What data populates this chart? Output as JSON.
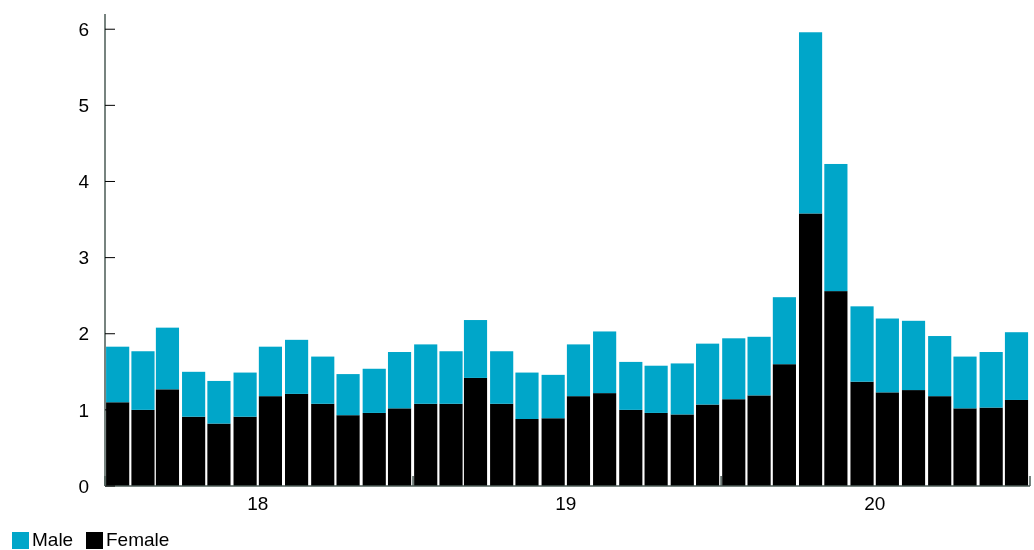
{
  "chart_data": {
    "type": "bar",
    "stacked": true,
    "x": [
      "2018-01-16",
      "2018-02-15",
      "2018-03-16",
      "2018-04-16",
      "2018-05-16",
      "2018-06-16",
      "2018-07-16",
      "2018-08-16",
      "2018-09-16",
      "2018-10-16",
      "2018-11-16",
      "2018-12-16",
      "2019-01-16",
      "2019-02-15",
      "2019-03-16",
      "2019-04-16",
      "2019-05-16",
      "2019-06-16",
      "2019-07-16",
      "2019-08-16",
      "2019-09-16",
      "2019-10-16",
      "2019-11-16",
      "2019-12-16",
      "2020-01-16",
      "2020-02-15",
      "2020-03-16",
      "2020-04-16",
      "2020-05-16",
      "2020-06-16",
      "2020-07-16",
      "2020-08-16",
      "2020-09-16",
      "2020-10-16",
      "2020-11-16",
      "2020-12-16"
    ],
    "series": [
      {
        "name": "Female",
        "color": "#000000",
        "values": [
          1.1,
          1.0,
          1.27,
          0.91,
          0.82,
          0.91,
          1.18,
          1.21,
          1.08,
          0.93,
          0.96,
          1.02,
          1.08,
          1.08,
          1.42,
          1.08,
          0.88,
          0.89,
          1.18,
          1.22,
          1.0,
          0.96,
          0.94,
          1.07,
          1.14,
          1.19,
          1.6,
          3.58,
          2.56,
          1.37,
          1.23,
          1.26,
          1.18,
          1.02,
          1.03,
          1.13
        ]
      },
      {
        "name": "Male",
        "color": "#00a6c9",
        "values": [
          0.73,
          0.77,
          0.81,
          0.59,
          0.56,
          0.58,
          0.65,
          0.71,
          0.62,
          0.54,
          0.58,
          0.74,
          0.78,
          0.69,
          0.76,
          0.69,
          0.61,
          0.57,
          0.68,
          0.81,
          0.63,
          0.62,
          0.67,
          0.8,
          0.8,
          0.77,
          0.88,
          2.38,
          1.67,
          0.99,
          0.97,
          0.91,
          0.79,
          0.68,
          0.73,
          0.89
        ]
      }
    ],
    "xlim": [
      "2018-01",
      "2021-01"
    ],
    "xticks": [
      {
        "value": "2018-01",
        "label": null
      },
      {
        "value": "2018-07",
        "label": "18"
      },
      {
        "value": "2019-01",
        "label": null
      },
      {
        "value": "2019-07",
        "label": "19"
      },
      {
        "value": "2020-01",
        "label": null
      },
      {
        "value": "2020-07",
        "label": "20"
      },
      {
        "value": "2021-01",
        "label": null
      }
    ],
    "ylim": [
      0,
      6.2
    ],
    "yticks": [
      0,
      1,
      2,
      3,
      4,
      5,
      6
    ],
    "grid": false,
    "legend": "bottom left"
  }
}
